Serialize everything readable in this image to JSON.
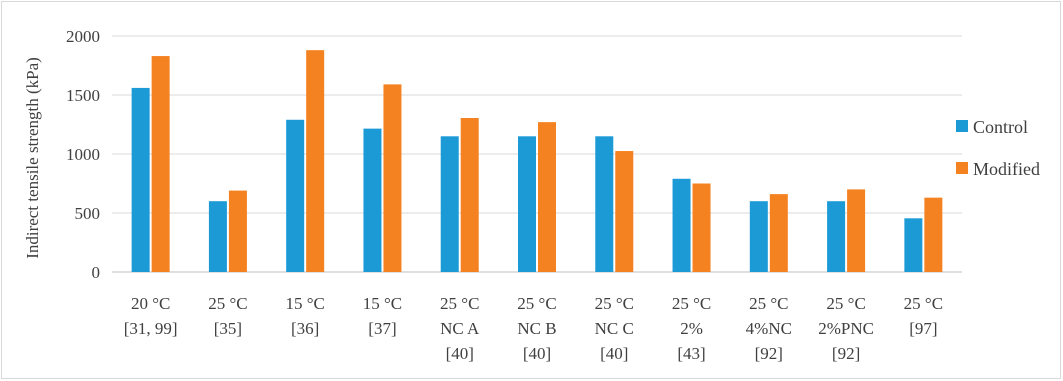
{
  "chart_data": {
    "type": "bar",
    "title": "",
    "xlabel": "",
    "ylabel": "Indirect tensile strength (kPa)",
    "ylim": [
      0,
      2000
    ],
    "yticks": [
      0,
      500,
      1000,
      1500,
      2000
    ],
    "grid": true,
    "legend_position": "right",
    "categories": [
      [
        "20 °C",
        "[31, 99]"
      ],
      [
        "25 °C",
        "[35]"
      ],
      [
        "15 °C",
        "[36]"
      ],
      [
        "15 °C",
        "[37]"
      ],
      [
        "25 °C",
        "NC A",
        "[40]"
      ],
      [
        "25 °C",
        "NC B",
        "[40]"
      ],
      [
        "25 °C",
        "NC C",
        "[40]"
      ],
      [
        "25 °C",
        "2%",
        "[43]"
      ],
      [
        "25 °C",
        "4%NC",
        "[92]"
      ],
      [
        "25 °C",
        "2%PNC",
        "[92]"
      ],
      [
        "25 °C",
        "[97]"
      ]
    ],
    "series": [
      {
        "name": "Control",
        "color": "#1b9ad6",
        "values": [
          1560,
          600,
          1290,
          1215,
          1150,
          1150,
          1150,
          790,
          600,
          600,
          455
        ]
      },
      {
        "name": "Modified",
        "color": "#f58220",
        "values": [
          1830,
          690,
          1880,
          1590,
          1305,
          1270,
          1025,
          750,
          660,
          700,
          630
        ]
      }
    ]
  }
}
